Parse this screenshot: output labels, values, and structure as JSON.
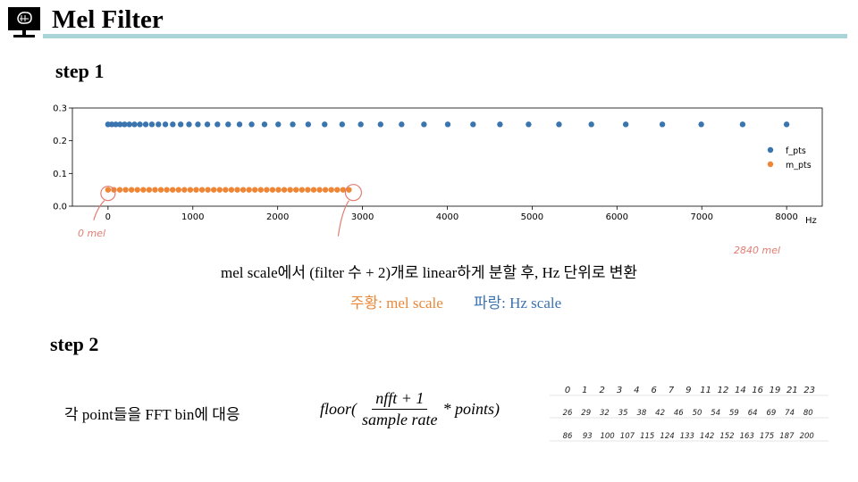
{
  "header": {
    "title": "Mel Filter"
  },
  "step1": {
    "label": "step 1"
  },
  "chart_data": {
    "type": "scatter",
    "xlim": [
      -420,
      8420
    ],
    "ylim": [
      0,
      0.3
    ],
    "xticks": [
      "0",
      "1000",
      "2000",
      "3000",
      "4000",
      "5000",
      "6000",
      "7000",
      "8000"
    ],
    "yticks": [
      "0.0",
      "0.1",
      "0.2",
      "0.3"
    ],
    "x_unit_annotation": "Hz",
    "legend_position": "right",
    "series": [
      {
        "name": "f_pts",
        "color": "#3a75b0",
        "y": 0.25,
        "x_from": "mel_to_hz(m_pts)"
      },
      {
        "name": "m_pts",
        "color": "#ef8636",
        "y": 0.05,
        "x_from": "linspace(0, 2840, 42)"
      }
    ],
    "mel_range": [
      0,
      2840
    ],
    "num_points": 42,
    "annotations": {
      "left": "0 mel",
      "right": "2840 mel"
    }
  },
  "caption": "mel scale에서 (filter 수 + 2)개로 linear하게 분할 후, Hz 단위로 변환",
  "color_legend": {
    "orange": "주황: mel scale",
    "blue": "파랑: Hz scale"
  },
  "step2": {
    "label": "step 2"
  },
  "mapping_text": "각 point들을 FFT bin에 대응",
  "formula": {
    "prefix": "floor(",
    "numerator": "nfft + 1",
    "denominator": "sample rate",
    "suffix": "* points)"
  },
  "bins": {
    "row1": [
      "0",
      "1",
      "2",
      "3",
      "4",
      "6",
      "7",
      "9",
      "11",
      "12",
      "14",
      "16",
      "19",
      "21",
      "23"
    ],
    "row2": [
      "26",
      "29",
      "32",
      "35",
      "38",
      "42",
      "46",
      "50",
      "54",
      "59",
      "64",
      "69",
      "74",
      "80"
    ],
    "row3": [
      "86",
      "93",
      "100",
      "107",
      "115",
      "124",
      "133",
      "142",
      "152",
      "163",
      "175",
      "187",
      "200"
    ]
  },
  "colors": {
    "accent_bar": "#a9d5d8",
    "orange": "#e8883a",
    "blue": "#3b73b0",
    "handwriting": "#e27d72"
  }
}
